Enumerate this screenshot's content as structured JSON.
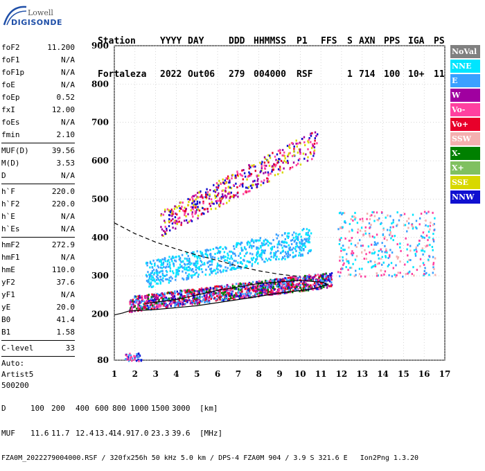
{
  "logo": {
    "top": "Lowell",
    "bottom": "DIGISONDE"
  },
  "header": {
    "row1": [
      "Station",
      "YYYY",
      "DAY",
      "DDD",
      "HHMMSS",
      "P1",
      "FFS",
      "S",
      "AXN",
      "PPS",
      "IGA",
      "PS"
    ],
    "row2": [
      "Fortaleza",
      "2022",
      "Out06",
      "279",
      "004000",
      "RSF",
      "",
      "1",
      "714",
      "100",
      "10+",
      "11"
    ]
  },
  "params": [
    [
      {
        "name": "foF2",
        "value": "11.200"
      },
      {
        "name": "foF1",
        "value": "N/A"
      },
      {
        "name": "foF1p",
        "value": "N/A"
      },
      {
        "name": "foE",
        "value": "N/A"
      },
      {
        "name": "foEp",
        "value": "0.52"
      },
      {
        "name": "fxI",
        "value": "12.00"
      },
      {
        "name": "foEs",
        "value": "N/A"
      },
      {
        "name": "fmin",
        "value": "2.10"
      }
    ],
    [
      {
        "name": "MUF(D)",
        "value": "39.56"
      },
      {
        "name": "M(D)",
        "value": "3.53"
      },
      {
        "name": "D",
        "value": "N/A"
      }
    ],
    [
      {
        "name": "h`F",
        "value": "220.0"
      },
      {
        "name": "h`F2",
        "value": "220.0"
      },
      {
        "name": "h`E",
        "value": "N/A"
      },
      {
        "name": "h`Es",
        "value": "N/A"
      }
    ],
    [
      {
        "name": "hmF2",
        "value": "272.9"
      },
      {
        "name": "hmF1",
        "value": "N/A"
      },
      {
        "name": "hmE",
        "value": "110.0"
      },
      {
        "name": "yF2",
        "value": "37.6"
      },
      {
        "name": "yF1",
        "value": "N/A"
      },
      {
        "name": "yE",
        "value": "20.0"
      },
      {
        "name": "B0",
        "value": "41.4"
      },
      {
        "name": "B1",
        "value": "1.58"
      }
    ],
    [
      {
        "name": "C-level",
        "value": "33"
      }
    ]
  ],
  "auto": {
    "line1": "Auto:",
    "line2": "Artist5",
    "line3": "500200"
  },
  "legend": [
    {
      "label": "NoVal",
      "color": "#808080"
    },
    {
      "label": "NNE",
      "color": "#00e5ff"
    },
    {
      "label": "E",
      "color": "#3aa0ff"
    },
    {
      "label": "W",
      "color": "#a000a0"
    },
    {
      "label": "Vo-",
      "color": "#ff40a0"
    },
    {
      "label": "Vo+",
      "color": "#e8002a"
    },
    {
      "label": "SSW",
      "color": "#f4b0b0"
    },
    {
      "label": "X-",
      "color": "#008000"
    },
    {
      "label": "X+",
      "color": "#80c060"
    },
    {
      "label": "SSE",
      "color": "#d8d800"
    },
    {
      "label": "NNW",
      "color": "#1010d0"
    }
  ],
  "footer": {
    "d_label": "D",
    "d_values": [
      "100",
      "200",
      "400",
      "600",
      "800",
      "1000",
      "1500",
      "3000"
    ],
    "d_unit": "[km]",
    "muf_label": "MUF",
    "muf_values": [
      "11.6",
      "11.7",
      "12.4",
      "13.4",
      "14.9",
      "17.0",
      "23.3",
      "39.6"
    ],
    "muf_unit": "[MHz]",
    "info": "FZA0M_2022279004000.RSF / 320fx256h 50 kHz 5.0 km / DPS-4 FZA0M 904 / 3.9 S 321.6 E   Ion2Png 1.3.20"
  },
  "chart_data": {
    "type": "scatter",
    "title": "",
    "xlabel": "",
    "ylabel": "",
    "xlim": [
      1,
      17
    ],
    "ylim": [
      80,
      900
    ],
    "xticks": [
      1,
      2,
      3,
      4,
      5,
      6,
      7,
      8,
      9,
      10,
      11,
      12,
      13,
      14,
      15,
      16,
      17
    ],
    "yticks": [
      80,
      200,
      300,
      400,
      500,
      600,
      700,
      800,
      900
    ],
    "grid": true,
    "legend_position": "right",
    "clusters": [
      {
        "name": "F-trace-main",
        "x": [
          1.7,
          11.5
        ],
        "y": [
          220,
          300
        ],
        "colors": [
          "Vo+",
          "Vo-",
          "W",
          "X-",
          "NNW",
          "E"
        ]
      },
      {
        "name": "F-trace-upper",
        "x": [
          2.5,
          10.5
        ],
        "y": [
          270,
          420
        ],
        "colors": [
          "E",
          "NNE"
        ]
      },
      {
        "name": "second-hop",
        "x": [
          3.2,
          10.8
        ],
        "y": [
          430,
          680
        ],
        "colors": [
          "Vo+",
          "Vo-",
          "W",
          "SSE",
          "NNW"
        ]
      },
      {
        "name": "high-freq-patches",
        "x": [
          11.8,
          16.5
        ],
        "y": [
          300,
          470
        ],
        "colors": [
          "NNE",
          "E",
          "Vo-",
          "SSW"
        ]
      },
      {
        "name": "low-patch",
        "x": [
          1.5,
          2.3
        ],
        "y": [
          80,
          100
        ],
        "colors": [
          "E",
          "NNW",
          "Vo-"
        ]
      }
    ],
    "curves": [
      {
        "name": "profile-solid",
        "style": "solid",
        "points": [
          [
            1.7,
            208
          ],
          [
            3,
            212
          ],
          [
            5,
            222
          ],
          [
            7,
            238
          ],
          [
            9,
            255
          ],
          [
            10.5,
            265
          ],
          [
            11,
            272
          ],
          [
            11.3,
            278
          ],
          [
            11.1,
            283
          ],
          [
            10,
            288
          ],
          [
            8,
            280
          ],
          [
            6,
            262
          ],
          [
            4,
            238
          ],
          [
            2.5,
            228
          ]
        ]
      },
      {
        "name": "profile-dashed",
        "style": "dashed",
        "points": [
          [
            1,
            438
          ],
          [
            2,
            410
          ],
          [
            3,
            388
          ],
          [
            4,
            370
          ],
          [
            5,
            354
          ],
          [
            6,
            340
          ],
          [
            7,
            325
          ],
          [
            8,
            313
          ],
          [
            9,
            304
          ],
          [
            10,
            298
          ]
        ]
      },
      {
        "name": "baseline",
        "style": "solid",
        "points": [
          [
            1,
            198
          ],
          [
            1.4,
            203
          ],
          [
            1.7,
            208
          ]
        ]
      }
    ]
  }
}
